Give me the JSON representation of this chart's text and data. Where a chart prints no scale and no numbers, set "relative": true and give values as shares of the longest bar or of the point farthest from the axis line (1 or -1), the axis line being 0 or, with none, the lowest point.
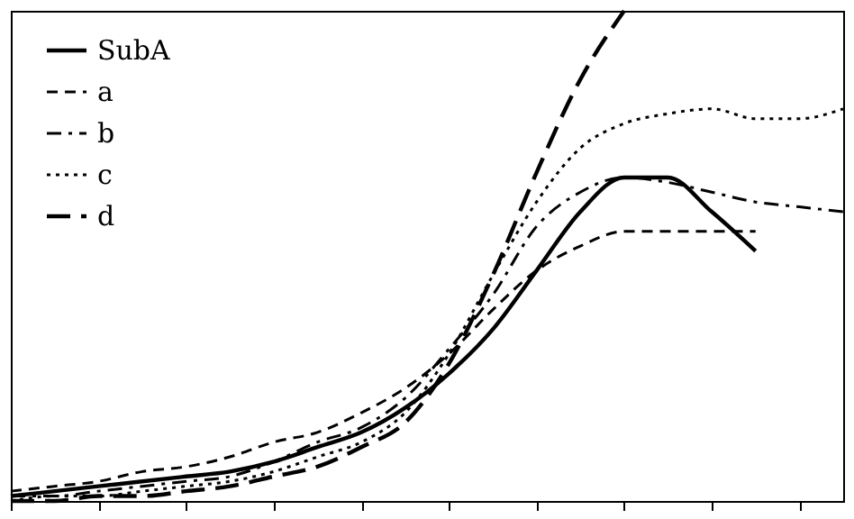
{
  "chart_data": {
    "type": "line",
    "relative": true,
    "legend": "top left",
    "grid": false,
    "marker": "none",
    "tick_labels": false,
    "categories": [
      null,
      null,
      null,
      null,
      null,
      null,
      null,
      null,
      null,
      null,
      null,
      null,
      null,
      null,
      null,
      null,
      null,
      null,
      null,
      null
    ],
    "series": [
      {
        "name": "SubA",
        "color": "#000000",
        "line_style": "solid",
        "values": [
          0.01,
          0.02,
          0.03,
          0.04,
          0.05,
          0.06,
          0.08,
          0.11,
          0.14,
          0.19,
          0.26,
          0.35,
          0.47,
          0.59,
          0.66,
          0.66,
          0.59,
          0.51,
          null,
          null
        ]
      },
      {
        "name": "a",
        "color": "#000000",
        "line_style": "dashed",
        "values": [
          0.02,
          0.03,
          0.04,
          0.06,
          0.07,
          0.09,
          0.12,
          0.14,
          0.18,
          0.23,
          0.3,
          0.39,
          0.47,
          0.52,
          0.55,
          0.55,
          0.55,
          0.55,
          null,
          null
        ]
      },
      {
        "name": "b",
        "color": "#000000",
        "line_style": "dashdot",
        "values": [
          0.01,
          0.01,
          0.02,
          0.03,
          0.04,
          0.05,
          0.08,
          0.12,
          0.15,
          0.21,
          0.31,
          0.42,
          0.56,
          0.63,
          0.66,
          0.65,
          0.63,
          0.61,
          0.6,
          0.59
        ]
      },
      {
        "name": "c",
        "color": "#000000",
        "line_style": "dotted",
        "values": [
          0.0,
          0.01,
          0.01,
          0.02,
          0.03,
          0.04,
          0.06,
          0.09,
          0.12,
          0.18,
          0.3,
          0.46,
          0.61,
          0.72,
          0.77,
          0.79,
          0.8,
          0.78,
          0.78,
          0.8
        ]
      },
      {
        "name": "d",
        "color": "#000000",
        "line_style": "longdash",
        "values": [
          0.0,
          0.0,
          0.01,
          0.01,
          0.02,
          0.03,
          0.05,
          0.07,
          0.11,
          0.16,
          0.28,
          0.46,
          0.67,
          0.86,
          1.0,
          null,
          null,
          null,
          null,
          null
        ]
      }
    ]
  }
}
